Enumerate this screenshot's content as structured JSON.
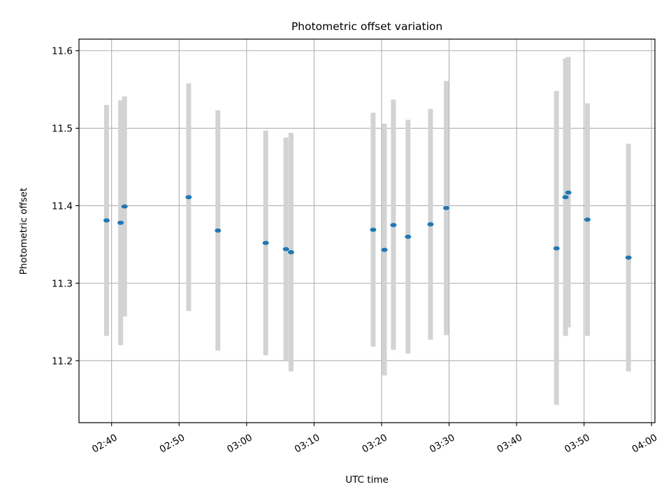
{
  "chart_data": {
    "type": "scatter",
    "title": "Photometric offset variation",
    "xlabel": "UTC time",
    "ylabel": "Photometric offset",
    "x_ticks": [
      "02:40",
      "02:50",
      "03:00",
      "03:10",
      "03:20",
      "03:30",
      "03:40",
      "03:50",
      "04:00"
    ],
    "y_ticks": [
      "11.2",
      "11.3",
      "11.4",
      "11.5",
      "11.6"
    ],
    "xlim": [
      "02:35:10",
      "04:00:30"
    ],
    "ylim": [
      11.12,
      11.615
    ],
    "grid": true,
    "point_color": "#1f77b4",
    "errorbar_color": "#d3d3d3",
    "points": [
      {
        "x": "02:39:15",
        "y": 11.381,
        "ylo": 11.232,
        "yhi": 11.53
      },
      {
        "x": "02:41:20",
        "y": 11.378,
        "ylo": 11.22,
        "yhi": 11.536
      },
      {
        "x": "02:41:55",
        "y": 11.399,
        "ylo": 11.257,
        "yhi": 11.541
      },
      {
        "x": "02:51:25",
        "y": 11.411,
        "ylo": 11.264,
        "yhi": 11.558
      },
      {
        "x": "02:55:45",
        "y": 11.368,
        "ylo": 11.213,
        "yhi": 11.523
      },
      {
        "x": "03:02:50",
        "y": 11.352,
        "ylo": 11.207,
        "yhi": 11.497
      },
      {
        "x": "03:05:50",
        "y": 11.344,
        "ylo": 11.2,
        "yhi": 11.488
      },
      {
        "x": "03:06:35",
        "y": 11.34,
        "ylo": 11.186,
        "yhi": 11.494
      },
      {
        "x": "03:18:45",
        "y": 11.369,
        "ylo": 11.218,
        "yhi": 11.52
      },
      {
        "x": "03:20:25",
        "y": 11.343,
        "ylo": 11.181,
        "yhi": 11.506
      },
      {
        "x": "03:21:45",
        "y": 11.375,
        "ylo": 11.214,
        "yhi": 11.537
      },
      {
        "x": "03:23:55",
        "y": 11.36,
        "ylo": 11.209,
        "yhi": 11.511
      },
      {
        "x": "03:27:15",
        "y": 11.376,
        "ylo": 11.227,
        "yhi": 11.525
      },
      {
        "x": "03:29:35",
        "y": 11.397,
        "ylo": 11.233,
        "yhi": 11.561
      },
      {
        "x": "03:45:55",
        "y": 11.345,
        "ylo": 11.143,
        "yhi": 11.548
      },
      {
        "x": "03:47:15",
        "y": 11.411,
        "ylo": 11.232,
        "yhi": 11.59
      },
      {
        "x": "03:47:40",
        "y": 11.417,
        "ylo": 11.243,
        "yhi": 11.592
      },
      {
        "x": "03:50:30",
        "y": 11.382,
        "ylo": 11.232,
        "yhi": 11.532
      },
      {
        "x": "03:56:35",
        "y": 11.333,
        "ylo": 11.186,
        "yhi": 11.48
      }
    ]
  }
}
